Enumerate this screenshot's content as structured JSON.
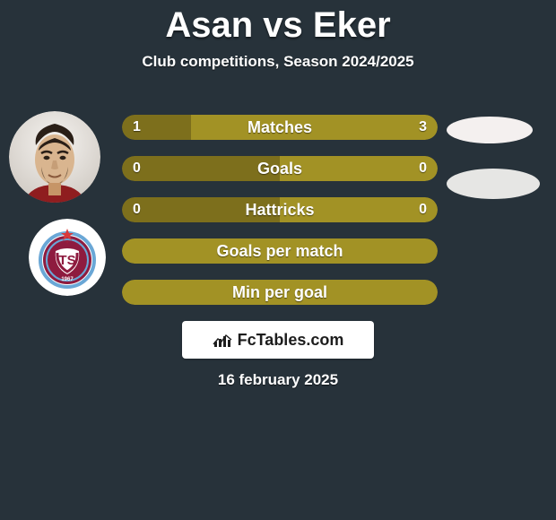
{
  "page": {
    "background_color": "#27323a",
    "title": "Asan vs Eker",
    "subtitle": "Club competitions, Season 2024/2025",
    "date": "16 february 2025"
  },
  "colors": {
    "bar_olive": "#a29225",
    "bar_olive_dark": "#7d6f1c",
    "oval1": "#f4f0ef",
    "oval2": "#e6e6e4"
  },
  "bars": [
    {
      "label": "Matches",
      "left_val": "1",
      "right_val": "3",
      "left_pct": 22,
      "right_pct": 78,
      "mode": "split"
    },
    {
      "label": "Goals",
      "left_val": "0",
      "right_val": "0",
      "left_pct": 50,
      "right_pct": 50,
      "mode": "split"
    },
    {
      "label": "Hattricks",
      "left_val": "0",
      "right_val": "0",
      "left_pct": 50,
      "right_pct": 50,
      "mode": "split"
    },
    {
      "label": "Goals per match",
      "left_val": "",
      "right_val": "",
      "mode": "full"
    },
    {
      "label": "Min per goal",
      "left_val": "",
      "right_val": "",
      "mode": "full"
    }
  ],
  "brand": {
    "name": "FcTables.com"
  }
}
